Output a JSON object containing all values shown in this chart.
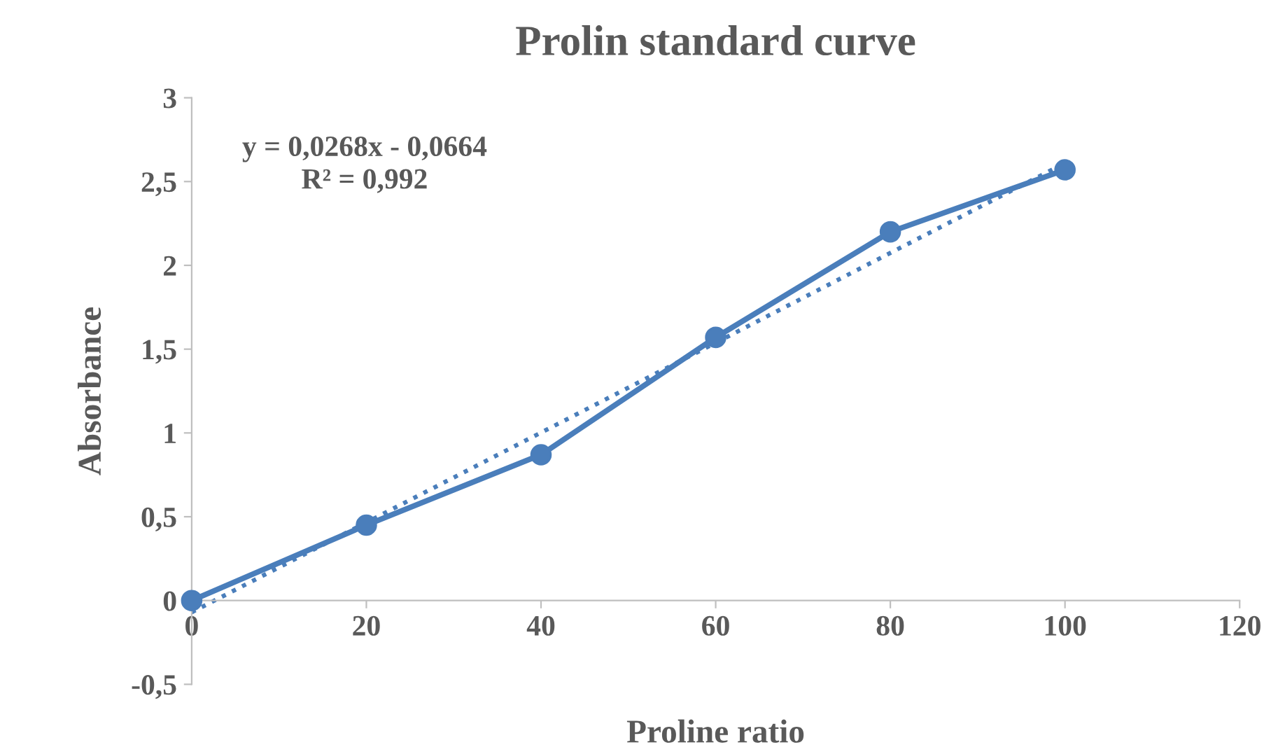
{
  "chart_data": {
    "type": "line",
    "title": "Prolin standard curve",
    "xlabel": "Proline ratio",
    "ylabel": "Absorbance",
    "x": [
      0,
      20,
      40,
      60,
      80,
      100
    ],
    "series": [
      {
        "color": "#4a7ebb",
        "values": [
          0,
          0.45,
          0.87,
          1.57,
          2.2,
          2.57
        ],
        "marker": "circle",
        "line_style": "solid"
      },
      {
        "type": "line",
        "color": "#4a7ebb",
        "x": [
          0,
          100
        ],
        "values": [
          -0.07,
          2.61
        ],
        "marker": "none",
        "line_style": "dotted"
      }
    ],
    "annotations": [
      "y = 0,0268x - 0,0664\nR² = 0,992"
    ],
    "xlim": [
      0,
      120
    ],
    "xticks": [
      0,
      20,
      40,
      60,
      80,
      100,
      120
    ],
    "ylim": [
      -0.5,
      3
    ],
    "yticks": [
      {
        "value": -0.5,
        "label": "-0,5"
      },
      0,
      {
        "value": 0.5,
        "label": "0,5"
      },
      1,
      {
        "value": 1.5,
        "label": "1,5"
      },
      2,
      {
        "value": 2.5,
        "label": "2,5"
      },
      3
    ],
    "grid": false,
    "legend": false
  }
}
